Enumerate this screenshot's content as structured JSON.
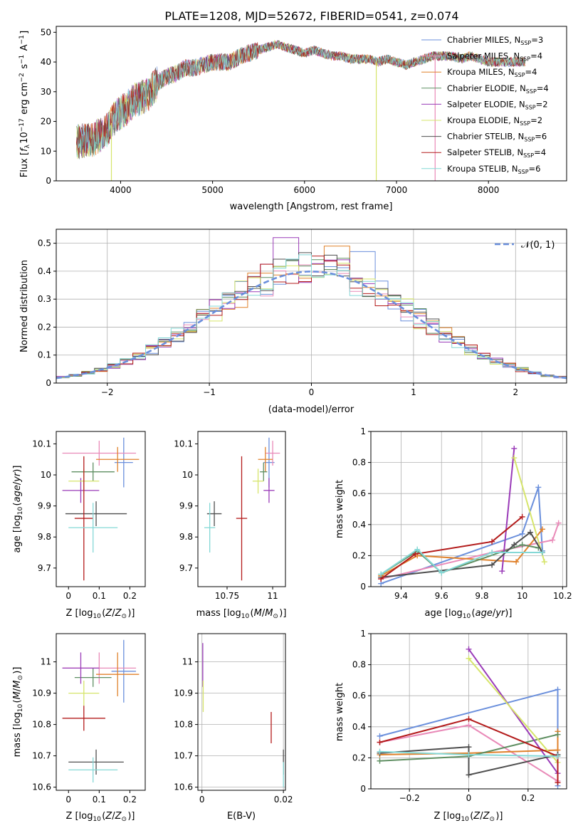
{
  "figure": {
    "title": "PLATE=1208, MJD=52672, FIBERID=0541, z=0.074"
  },
  "colors": {
    "Chabrier MILES": "#6a8fdc",
    "Salpeter MILES": "#e98ab8",
    "Kroupa MILES": "#e0822c",
    "Chabrier ELODIE": "#5f8f62",
    "Salpeter ELODIE": "#9a3bb8",
    "Kroupa ELODIE": "#d6e56a",
    "Chabrier STELIB": "#4f4f4f",
    "Salpeter STELIB": "#b31b1b",
    "Kroupa STELIB": "#84d8d6",
    "gaussian": "#6a8fdc"
  },
  "chart_data": [
    {
      "id": "spectrum",
      "type": "line",
      "xlabel": "wavelength [Angstrom, rest frame]",
      "ylabel": "Flux [f_λ10^-17 erg cm^-2 s^-1 A^-1]",
      "xlim": [
        3300,
        8850
      ],
      "ylim": [
        0,
        52
      ],
      "xticks": [
        4000,
        5000,
        6000,
        7000,
        8000
      ],
      "yticks": [
        0,
        10,
        20,
        30,
        40,
        50
      ],
      "grid": false,
      "legend_position": "top-right",
      "legend": [
        {
          "label": "Chabrier MILES",
          "nssp": "3"
        },
        {
          "label": "Salpeter MILES",
          "nssp": "4"
        },
        {
          "label": "Kroupa MILES",
          "nssp": "4"
        },
        {
          "label": "Chabrier ELODIE",
          "nssp": "4"
        },
        {
          "label": "Salpeter ELODIE",
          "nssp": "2"
        },
        {
          "label": "Kroupa ELODIE",
          "nssp": "2"
        },
        {
          "label": "Chabrier STELIB",
          "nssp": "6"
        },
        {
          "label": "Salpeter STELIB",
          "nssp": "4"
        },
        {
          "label": "Kroupa STELIB",
          "nssp": "6"
        }
      ],
      "continuum": [
        [
          3520,
          13
        ],
        [
          3700,
          14
        ],
        [
          3850,
          17
        ],
        [
          3950,
          22
        ],
        [
          4050,
          24
        ],
        [
          4150,
          27
        ],
        [
          4300,
          29
        ],
        [
          4400,
          33
        ],
        [
          4500,
          35
        ],
        [
          4600,
          36
        ],
        [
          4700,
          38
        ],
        [
          4800,
          38
        ],
        [
          4900,
          39
        ],
        [
          5000,
          40
        ],
        [
          5100,
          40
        ],
        [
          5200,
          40
        ],
        [
          5300,
          42
        ],
        [
          5400,
          43
        ],
        [
          5500,
          44
        ],
        [
          5600,
          45
        ],
        [
          5700,
          46
        ],
        [
          5800,
          45
        ],
        [
          5900,
          44
        ],
        [
          6000,
          43
        ],
        [
          6100,
          44
        ],
        [
          6200,
          43
        ],
        [
          6300,
          42
        ],
        [
          6400,
          42
        ],
        [
          6500,
          41
        ],
        [
          6600,
          41
        ],
        [
          6700,
          41
        ],
        [
          6800,
          40
        ],
        [
          6900,
          41
        ],
        [
          7000,
          40
        ],
        [
          7100,
          39
        ],
        [
          7200,
          40
        ],
        [
          7300,
          41
        ],
        [
          7400,
          42
        ],
        [
          7500,
          42
        ],
        [
          7600,
          42
        ],
        [
          7700,
          41
        ],
        [
          7800,
          42
        ],
        [
          7900,
          41
        ],
        [
          8000,
          40
        ],
        [
          8100,
          40
        ],
        [
          8200,
          40
        ],
        [
          8300,
          40
        ],
        [
          8400,
          40
        ]
      ],
      "spikes": [
        {
          "x": 3900,
          "y": 0,
          "series": "Kroupa ELODIE"
        },
        {
          "x": 6780,
          "y": 0,
          "series": "Kroupa ELODIE"
        },
        {
          "x": 7420,
          "y": 0,
          "series": "Salpeter MILES"
        }
      ]
    },
    {
      "id": "residuals",
      "type": "histogram",
      "xlabel": "(data-model)/error",
      "ylabel": "Normed distribution",
      "xlim": [
        -2.5,
        2.5
      ],
      "ylim": [
        0,
        0.55
      ],
      "xticks": [
        -2,
        -1,
        0,
        1,
        2
      ],
      "yticks": [
        0.0,
        0.1,
        0.2,
        0.3,
        0.4,
        0.5
      ],
      "grid": true,
      "legend_position": "top-right",
      "legend_label": "𝒩(0, 1)",
      "bin_width": 0.125,
      "base": [
        0.018,
        0.024,
        0.032,
        0.038,
        0.046,
        0.058,
        0.071,
        0.085,
        0.103,
        0.121,
        0.141,
        0.164,
        0.188,
        0.213,
        0.238,
        0.265,
        0.29,
        0.315,
        0.337,
        0.357,
        0.373,
        0.387,
        0.396,
        0.4,
        0.4,
        0.396,
        0.387,
        0.373,
        0.357,
        0.337,
        0.315,
        0.29,
        0.265,
        0.238,
        0.213,
        0.188,
        0.164,
        0.141,
        0.121,
        0.103,
        0.085,
        0.071,
        0.058
      ],
      "peaks": [
        {
          "x": -0.25,
          "y": 0.52,
          "series": "Salpeter ELODIE"
        },
        {
          "x": 0.25,
          "y": 0.49,
          "series": "Kroupa MILES"
        },
        {
          "x": 0.5,
          "y": 0.47,
          "series": "Chabrier MILES"
        }
      ]
    },
    {
      "id": "age-vs-Z",
      "type": "errorbar",
      "xlabel": "Z [log10(Z/Z⊙)]",
      "ylabel": "age  [log10(age/yr)]",
      "xlim": [
        -0.04,
        0.25
      ],
      "ylim": [
        9.64,
        10.14
      ],
      "xticks": [
        0.0,
        0.1,
        0.2
      ],
      "yticks": [
        9.7,
        9.8,
        9.9,
        10.0,
        10.1
      ],
      "grid": false,
      "points": [
        {
          "series": "Chabrier MILES",
          "x": 0.18,
          "y": 10.04,
          "xerr": 0.03,
          "yerr": 0.08
        },
        {
          "series": "Salpeter MILES",
          "x": 0.1,
          "y": 10.07,
          "xerr": 0.12,
          "yerr": 0.04
        },
        {
          "series": "Kroupa MILES",
          "x": 0.16,
          "y": 10.05,
          "xerr": 0.07,
          "yerr": 0.04
        },
        {
          "series": "Chabrier ELODIE",
          "x": 0.08,
          "y": 10.01,
          "xerr": 0.07,
          "yerr": 0.03
        },
        {
          "series": "Salpeter ELODIE",
          "x": 0.04,
          "y": 9.95,
          "xerr": 0.06,
          "yerr": 0.04
        },
        {
          "series": "Kroupa ELODIE",
          "x": 0.05,
          "y": 9.98,
          "xerr": 0.05,
          "yerr": 0.04
        },
        {
          "series": "Chabrier STELIB",
          "x": 0.09,
          "y": 9.875,
          "xerr": 0.1,
          "yerr": 0.04
        },
        {
          "series": "Salpeter STELIB",
          "x": 0.05,
          "y": 9.86,
          "xerr": 0.03,
          "yerr": 0.2
        },
        {
          "series": "Kroupa STELIB",
          "x": 0.08,
          "y": 9.83,
          "xerr": 0.08,
          "yerr": 0.08
        }
      ]
    },
    {
      "id": "age-vs-mass",
      "type": "errorbar",
      "xlabel": "mass [log10(M/M⊙)]",
      "ylabel": "",
      "xlim": [
        10.59,
        11.07
      ],
      "ylim": [
        9.64,
        10.14
      ],
      "xticks": [
        10.75,
        11.0
      ],
      "yticks": [
        9.7,
        9.8,
        9.9,
        10.0,
        10.1
      ],
      "grid": false,
      "points": [
        {
          "series": "Chabrier MILES",
          "x": 10.98,
          "y": 10.04,
          "xerr": 0.03,
          "yerr": 0.08
        },
        {
          "series": "Salpeter MILES",
          "x": 11.0,
          "y": 10.07,
          "xerr": 0.04,
          "yerr": 0.04
        },
        {
          "series": "Kroupa MILES",
          "x": 10.96,
          "y": 10.05,
          "xerr": 0.04,
          "yerr": 0.04
        },
        {
          "series": "Chabrier ELODIE",
          "x": 10.95,
          "y": 10.01,
          "xerr": 0.02,
          "yerr": 0.03
        },
        {
          "series": "Salpeter ELODIE",
          "x": 10.98,
          "y": 9.95,
          "xerr": 0.03,
          "yerr": 0.04
        },
        {
          "series": "Kroupa ELODIE",
          "x": 10.92,
          "y": 9.98,
          "xerr": 0.03,
          "yerr": 0.04
        },
        {
          "series": "Chabrier STELIB",
          "x": 10.68,
          "y": 9.875,
          "xerr": 0.04,
          "yerr": 0.04
        },
        {
          "series": "Salpeter STELIB",
          "x": 10.83,
          "y": 9.86,
          "xerr": 0.03,
          "yerr": 0.2
        },
        {
          "series": "Kroupa STELIB",
          "x": 10.655,
          "y": 9.83,
          "xerr": 0.03,
          "yerr": 0.08
        }
      ]
    },
    {
      "id": "weight-vs-age",
      "type": "line",
      "xlabel": "age  [log10(age/yr)]",
      "ylabel": "mass weight",
      "xlim": [
        9.25,
        10.22
      ],
      "ylim": [
        0.0,
        1.0
      ],
      "xticks": [
        9.4,
        9.6,
        9.8,
        10.0,
        10.2
      ],
      "yticks": [
        0.0,
        0.2,
        0.4,
        0.6,
        0.8,
        1.0
      ],
      "grid": true,
      "series": [
        {
          "series": "Chabrier MILES",
          "x": [
            9.3,
            10.0,
            10.08,
            10.1
          ],
          "y": [
            0.02,
            0.34,
            0.64,
            0.23
          ]
        },
        {
          "series": "Salpeter MILES",
          "x": [
            9.3,
            9.85,
            10.15,
            10.18
          ],
          "y": [
            0.05,
            0.22,
            0.3,
            0.41
          ]
        },
        {
          "series": "Kroupa MILES",
          "x": [
            9.3,
            9.48,
            9.97,
            10.1
          ],
          "y": [
            0.07,
            0.2,
            0.16,
            0.37
          ]
        },
        {
          "series": "Chabrier ELODIE",
          "x": [
            9.3,
            9.48,
            9.6,
            10.0,
            10.08
          ],
          "y": [
            0.08,
            0.23,
            0.09,
            0.27,
            0.25
          ]
        },
        {
          "series": "Salpeter ELODIE",
          "x": [
            9.9,
            9.96
          ],
          "y": [
            0.1,
            0.89
          ]
        },
        {
          "series": "Kroupa ELODIE",
          "x": [
            9.96,
            10.11
          ],
          "y": [
            0.83,
            0.16
          ]
        },
        {
          "series": "Chabrier STELIB",
          "x": [
            9.3,
            9.85,
            9.96,
            10.04,
            10.1
          ],
          "y": [
            0.06,
            0.14,
            0.27,
            0.35,
            0.22
          ]
        },
        {
          "series": "Salpeter STELIB",
          "x": [
            9.3,
            9.47,
            9.85,
            10.0
          ],
          "y": [
            0.05,
            0.21,
            0.29,
            0.45
          ]
        },
        {
          "series": "Kroupa STELIB",
          "x": [
            9.3,
            9.48,
            9.6,
            9.85,
            10.1
          ],
          "y": [
            0.08,
            0.24,
            0.09,
            0.22,
            0.22
          ]
        }
      ]
    },
    {
      "id": "mass-vs-Z",
      "type": "errorbar",
      "xlabel": "Z [log10(Z/Z⊙)]",
      "ylabel": "mass [log10(M/M⊙)]",
      "xlim": [
        -0.04,
        0.25
      ],
      "ylim": [
        10.59,
        11.09
      ],
      "xticks": [
        0.0,
        0.1,
        0.2
      ],
      "yticks": [
        10.6,
        10.7,
        10.8,
        10.9,
        11.0
      ],
      "grid": false,
      "points": [
        {
          "series": "Chabrier MILES",
          "x": 0.18,
          "y": 10.97,
          "xerr": 0.04,
          "yerr": 0.1
        },
        {
          "series": "Salpeter MILES",
          "x": 0.1,
          "y": 10.98,
          "xerr": 0.12,
          "yerr": 0.05
        },
        {
          "series": "Kroupa MILES",
          "x": 0.16,
          "y": 10.96,
          "xerr": 0.07,
          "yerr": 0.07
        },
        {
          "series": "Chabrier ELODIE",
          "x": 0.08,
          "y": 10.95,
          "xerr": 0.06,
          "yerr": 0.03
        },
        {
          "series": "Salpeter ELODIE",
          "x": 0.04,
          "y": 10.98,
          "xerr": 0.06,
          "yerr": 0.05
        },
        {
          "series": "Kroupa ELODIE",
          "x": 0.05,
          "y": 10.9,
          "xerr": 0.05,
          "yerr": 0.04
        },
        {
          "series": "Chabrier STELIB",
          "x": 0.09,
          "y": 10.68,
          "xerr": 0.09,
          "yerr": 0.04
        },
        {
          "series": "Salpeter STELIB",
          "x": 0.05,
          "y": 10.82,
          "xerr": 0.07,
          "yerr": 0.04
        },
        {
          "series": "Kroupa STELIB",
          "x": 0.08,
          "y": 10.655,
          "xerr": 0.08,
          "yerr": 0.04
        }
      ]
    },
    {
      "id": "mass-vs-ebv",
      "type": "errorbar",
      "xlabel": "E(B-V)",
      "ylabel": "",
      "xlim": [
        -0.001,
        0.0205
      ],
      "ylim": [
        10.59,
        11.09
      ],
      "xticks": [
        0.0,
        0.02
      ],
      "yticks": [
        10.6,
        10.7,
        10.8,
        10.9,
        11.0
      ],
      "grid": true,
      "points": [
        {
          "series": "Salpeter ELODIE",
          "x": 0.0002,
          "y": 10.99,
          "xerr": 0,
          "yerr": 0.07
        },
        {
          "series": "Kroupa ELODIE",
          "x": 0.0003,
          "y": 10.89,
          "xerr": 0,
          "yerr": 0.05
        },
        {
          "series": "Salpeter STELIB",
          "x": 0.017,
          "y": 10.79,
          "xerr": 0,
          "yerr": 0.05
        },
        {
          "series": "Chabrier STELIB",
          "x": 0.02,
          "y": 10.68,
          "xerr": 0,
          "yerr": 0.04
        },
        {
          "series": "Kroupa STELIB",
          "x": 0.02,
          "y": 10.64,
          "xerr": 0,
          "yerr": 0.04
        }
      ]
    },
    {
      "id": "weight-vs-Z",
      "type": "line",
      "xlabel": "Z [log10(Z/Z⊙)]",
      "ylabel": "mass weight",
      "xlim": [
        -0.33,
        0.33
      ],
      "ylim": [
        0.0,
        1.0
      ],
      "xticks": [
        -0.2,
        0.0,
        0.2
      ],
      "yticks": [
        0.0,
        0.2,
        0.4,
        0.6,
        0.8,
        1.0
      ],
      "grid": true,
      "series": [
        {
          "series": "Chabrier MILES",
          "x": [
            -0.3,
            0.3,
            0.3
          ],
          "y": [
            0.34,
            0.64,
            0.02
          ]
        },
        {
          "series": "Salpeter MILES",
          "x": [
            -0.3,
            0.0,
            0.3
          ],
          "y": [
            0.3,
            0.41,
            0.05
          ]
        },
        {
          "series": "Kroupa MILES",
          "x": [
            -0.3,
            0.0,
            0.3,
            0.3
          ],
          "y": [
            0.22,
            0.23,
            0.25,
            0.37
          ]
        },
        {
          "series": "Chabrier ELODIE",
          "x": [
            -0.3,
            0.0,
            0.3
          ],
          "y": [
            0.18,
            0.21,
            0.35
          ]
        },
        {
          "series": "Salpeter ELODIE",
          "x": [
            0.0,
            0.3
          ],
          "y": [
            0.9,
            0.1
          ]
        },
        {
          "series": "Kroupa ELODIE",
          "x": [
            0.0,
            0.3
          ],
          "y": [
            0.84,
            0.17
          ]
        },
        {
          "series": "Chabrier STELIB",
          "x": [
            -0.3,
            0.0,
            0.0,
            0.3
          ],
          "y": [
            0.23,
            0.27,
            0.09,
            0.22
          ]
        },
        {
          "series": "Salpeter STELIB",
          "x": [
            -0.3,
            0.0,
            0.3,
            0.3
          ],
          "y": [
            0.3,
            0.45,
            0.21,
            0.04
          ]
        },
        {
          "series": "Kroupa STELIB",
          "x": [
            -0.3,
            0.0,
            0.3
          ],
          "y": [
            0.24,
            0.22,
            0.21
          ]
        }
      ]
    }
  ]
}
